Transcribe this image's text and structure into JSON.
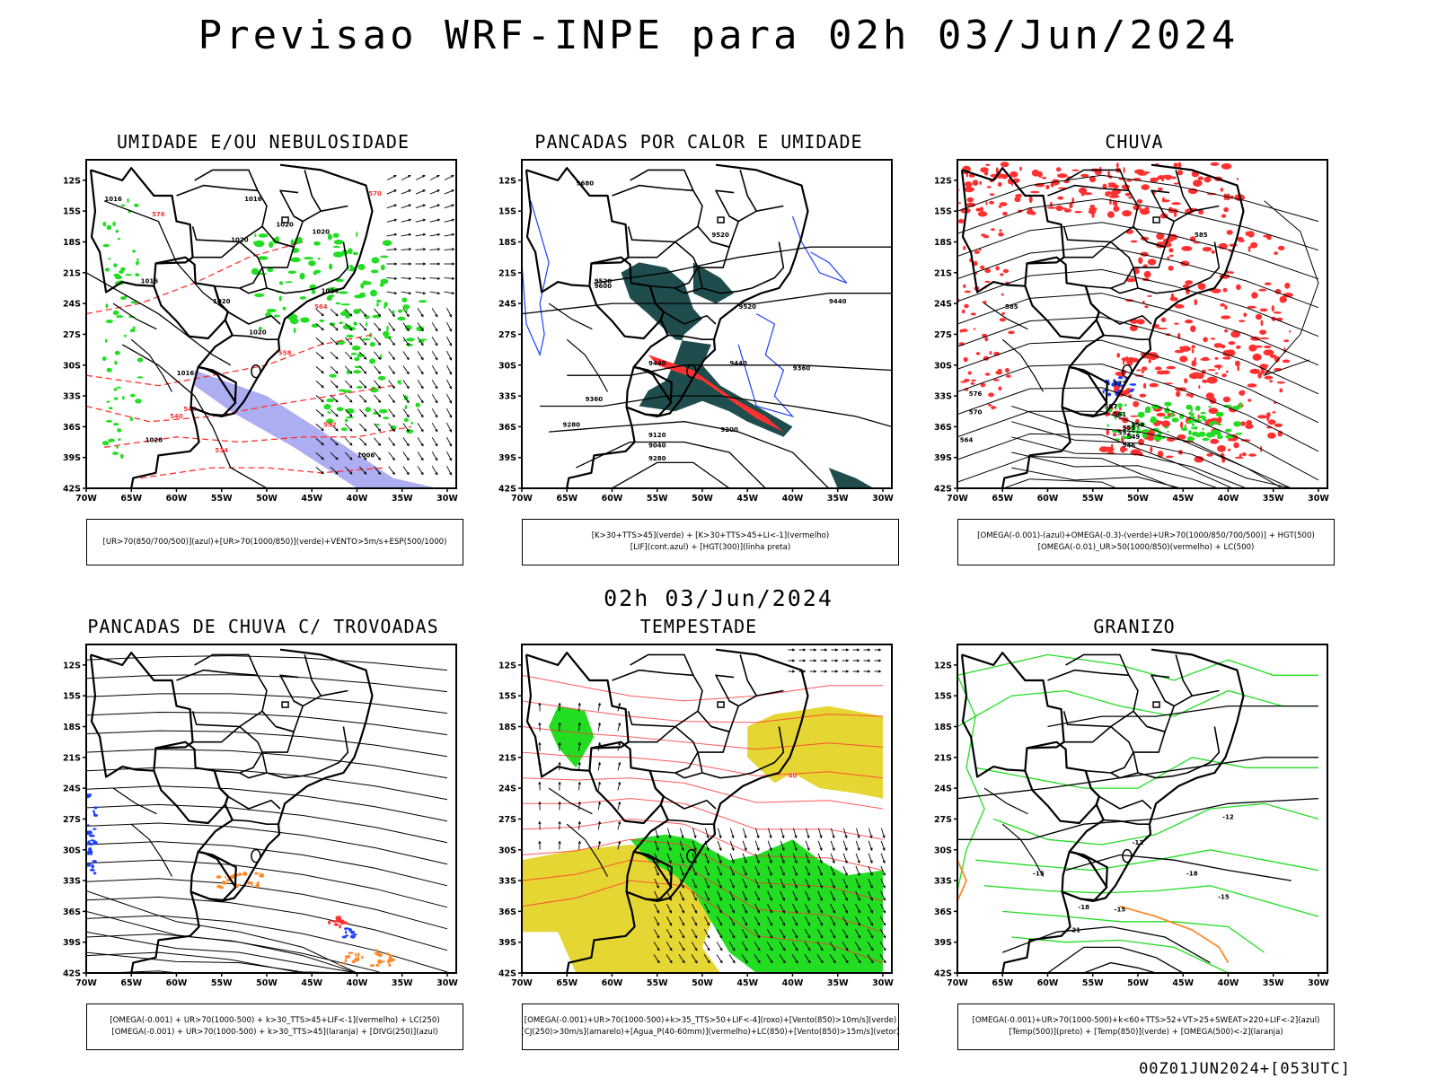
{
  "header": {
    "title": "Previsao WRF-INPE  para 02h 03/Jun/2024"
  },
  "middle_title": "02h 03/Jun/2024",
  "footer": "00Z01JUN2024+[053UTC]",
  "axes": {
    "lat_labels": [
      "12S",
      "15S",
      "18S",
      "21S",
      "24S",
      "27S",
      "30S",
      "33S",
      "36S",
      "39S",
      "42S"
    ],
    "lon_labels": [
      "70W",
      "65W",
      "60W",
      "55W",
      "50W",
      "45W",
      "40W",
      "35W",
      "30W"
    ]
  },
  "colors": {
    "red": "#ff3030",
    "green": "#22dd22",
    "blue": "#1e40ff",
    "teal": "#1f4d4d",
    "yellow": "#e6d633",
    "orange": "#ff8a2a",
    "purple_blue": "#8888ee"
  },
  "panels": [
    {
      "id": "umidade",
      "title": "UMIDADE E/OU NEBULOSIDADE",
      "caption": [
        "[UR>70(850/700/500)](azul)+[UR>70(1000/850)](verde)+VENTO>5m/s+ESP(500/1000)"
      ],
      "contour_labels": [
        "1016",
        "1016",
        "1020",
        "1020",
        "1020",
        "1016",
        "1020",
        "1024",
        "1020",
        "1016",
        "1028",
        "1006",
        "576",
        "570",
        "564",
        "558",
        "552",
        "546",
        "540",
        "534"
      ]
    },
    {
      "id": "pancadas-calor",
      "title": "PANCADAS POR CALOR E UMIDADE",
      "caption": [
        "[K>30+TTS>45](verde) + [K>30+TTS>45+LI<-1](vermelho)",
        "[LIF](cont.azul) + [HGT(300)](linha preta)"
      ],
      "contour_labels": [
        "9680",
        "9600",
        "9520",
        "9520",
        "9520",
        "9440",
        "9440",
        "9440",
        "9360",
        "9360",
        "9280",
        "9200",
        "9120",
        "9040",
        "9280"
      ]
    },
    {
      "id": "chuva",
      "title": "CHUVA",
      "caption": [
        "[OMEGA(-0.001)-(azul)+OMEGA(-0.3)-(verde)+UR>70(1000/850/700/500)] + HGT(500)",
        "[OMEGA(-0.01)_UR>50(1000/850)(vermelho) + LC(500)"
      ],
      "contour_labels": [
        "585",
        "585",
        "576",
        "573",
        "570",
        "567",
        "564",
        "561",
        "558",
        "555",
        "552",
        "549",
        "546"
      ]
    },
    {
      "id": "trovoadas",
      "title": "PANCADAS DE CHUVA C/ TROVOADAS",
      "caption": [
        "[OMEGA(-0.001) + UR>70(1000-500) + k>30_TTS>45+LIF<-1](vermelho) + LC(250)",
        "[OMEGA(-0.001) + UR>70(1000-500) + k>30_TTS>45](laranja) + [DIVG(250)](azul)"
      ],
      "contour_labels": []
    },
    {
      "id": "tempestade",
      "title": "TEMPESTADE",
      "caption": [
        "[OMEGA(-0.001)+UR>70(1000-500)+k>35_TTS>50+LIF<-4](roxo)+[Vento(850)>10m/s](verde)",
        "[CJ(250)>30m/s](amarelo)+[Agua_P(40-60mm)](vermelho)+LC(850)+[Vento(850)>15m/s](vetor)"
      ],
      "contour_labels": [
        "40"
      ]
    },
    {
      "id": "granizo",
      "title": "GRANIZO",
      "caption": [
        "[OMEGA(-0.001)+UR>70(1000-500)+k<60+TTS>52+VT>25+SWEAT>220+LIF<-2](azul)",
        "[Temp(500)](preto) + [Temp(850)](verde) + [OMEGA(500)<-2](laranja)"
      ],
      "contour_labels": [
        "-12",
        "-12",
        "-15",
        "-18",
        "-18",
        "-21",
        "-15",
        "-15"
      ]
    }
  ]
}
